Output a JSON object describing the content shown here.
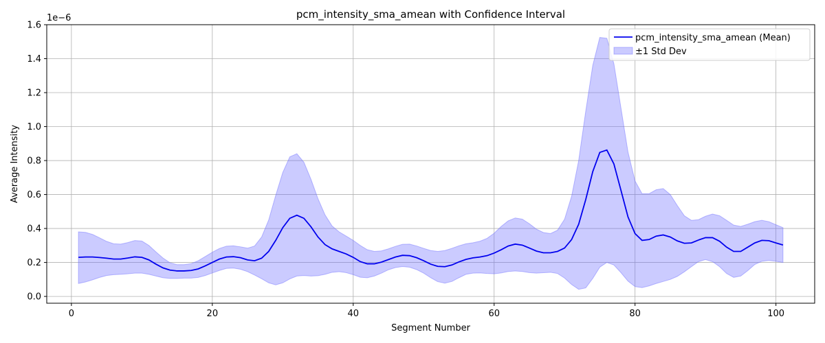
{
  "chart_data": {
    "type": "line",
    "title": "pcm_intensity_sma_amean with Confidence Interval",
    "xlabel": "Segment Number",
    "ylabel": "Average Intensity",
    "y_offset_label": "1e−6",
    "xlim": [
      -3.5,
      105.5
    ],
    "ylim": [
      -0.04,
      1.6
    ],
    "x_ticks": [
      0,
      20,
      40,
      60,
      80,
      100
    ],
    "y_ticks": [
      0.0,
      0.2,
      0.4,
      0.6,
      0.8,
      1.0,
      1.2,
      1.4,
      1.6
    ],
    "x_tick_labels": [
      "0",
      "20",
      "40",
      "60",
      "80",
      "100"
    ],
    "y_tick_labels": [
      "0.0",
      "0.2",
      "0.4",
      "0.6",
      "0.8",
      "1.0",
      "1.2",
      "1.4",
      "1.6"
    ],
    "grid": true,
    "legend_position": "top-right",
    "x": [
      1,
      2,
      3,
      4,
      5,
      6,
      7,
      8,
      9,
      10,
      11,
      12,
      13,
      14,
      15,
      16,
      17,
      18,
      19,
      20,
      21,
      22,
      23,
      24,
      25,
      26,
      27,
      28,
      29,
      30,
      31,
      32,
      33,
      34,
      35,
      36,
      37,
      38,
      39,
      40,
      41,
      42,
      43,
      44,
      45,
      46,
      47,
      48,
      49,
      50,
      51,
      52,
      53,
      54,
      55,
      56,
      57,
      58,
      59,
      60,
      61,
      62,
      63,
      64,
      65,
      66,
      67,
      68,
      69,
      70,
      71,
      72,
      73,
      74,
      75,
      76,
      77,
      78,
      79,
      80,
      81,
      82,
      83,
      84,
      85,
      86,
      87,
      88,
      89,
      90,
      91,
      92,
      93,
      94,
      95,
      96,
      97,
      98,
      99,
      100,
      101
    ],
    "series": [
      {
        "name": "pcm_intensity_sma_amean (Mean)",
        "color": "#0000ee",
        "values": [
          0.23,
          0.232,
          0.232,
          0.229,
          0.225,
          0.22,
          0.22,
          0.226,
          0.233,
          0.23,
          0.215,
          0.19,
          0.168,
          0.155,
          0.15,
          0.15,
          0.153,
          0.162,
          0.18,
          0.2,
          0.22,
          0.232,
          0.234,
          0.228,
          0.215,
          0.21,
          0.225,
          0.265,
          0.33,
          0.405,
          0.46,
          0.478,
          0.46,
          0.41,
          0.35,
          0.305,
          0.28,
          0.265,
          0.25,
          0.23,
          0.205,
          0.192,
          0.192,
          0.202,
          0.217,
          0.232,
          0.242,
          0.24,
          0.228,
          0.21,
          0.19,
          0.177,
          0.175,
          0.185,
          0.203,
          0.218,
          0.227,
          0.232,
          0.24,
          0.255,
          0.275,
          0.297,
          0.308,
          0.302,
          0.285,
          0.267,
          0.257,
          0.257,
          0.265,
          0.285,
          0.335,
          0.425,
          0.57,
          0.735,
          0.848,
          0.862,
          0.78,
          0.625,
          0.468,
          0.37,
          0.33,
          0.335,
          0.355,
          0.362,
          0.35,
          0.327,
          0.313,
          0.315,
          0.332,
          0.346,
          0.346,
          0.325,
          0.29,
          0.265,
          0.265,
          0.29,
          0.315,
          0.33,
          0.328,
          0.315,
          0.303
        ]
      }
    ],
    "band": {
      "name": "±1 Std Dev",
      "color": "#6b6bff",
      "lower": [
        0.076,
        0.085,
        0.098,
        0.112,
        0.123,
        0.128,
        0.13,
        0.133,
        0.137,
        0.137,
        0.13,
        0.12,
        0.11,
        0.106,
        0.106,
        0.108,
        0.108,
        0.112,
        0.123,
        0.138,
        0.153,
        0.165,
        0.167,
        0.16,
        0.146,
        0.126,
        0.104,
        0.08,
        0.068,
        0.08,
        0.103,
        0.12,
        0.123,
        0.12,
        0.122,
        0.13,
        0.142,
        0.146,
        0.14,
        0.128,
        0.113,
        0.11,
        0.12,
        0.137,
        0.157,
        0.17,
        0.176,
        0.172,
        0.158,
        0.137,
        0.11,
        0.087,
        0.078,
        0.088,
        0.11,
        0.13,
        0.137,
        0.138,
        0.135,
        0.133,
        0.138,
        0.147,
        0.15,
        0.147,
        0.14,
        0.137,
        0.14,
        0.142,
        0.135,
        0.108,
        0.07,
        0.042,
        0.05,
        0.106,
        0.172,
        0.2,
        0.185,
        0.14,
        0.09,
        0.058,
        0.052,
        0.062,
        0.076,
        0.088,
        0.1,
        0.118,
        0.145,
        0.175,
        0.205,
        0.217,
        0.205,
        0.175,
        0.135,
        0.112,
        0.12,
        0.152,
        0.188,
        0.207,
        0.212,
        0.207,
        0.2
      ],
      "upper": [
        0.38,
        0.377,
        0.365,
        0.345,
        0.324,
        0.31,
        0.308,
        0.317,
        0.329,
        0.326,
        0.3,
        0.262,
        0.226,
        0.198,
        0.187,
        0.187,
        0.193,
        0.21,
        0.235,
        0.26,
        0.282,
        0.296,
        0.298,
        0.292,
        0.284,
        0.297,
        0.35,
        0.45,
        0.595,
        0.73,
        0.822,
        0.84,
        0.79,
        0.69,
        0.575,
        0.48,
        0.415,
        0.38,
        0.355,
        0.33,
        0.3,
        0.275,
        0.265,
        0.268,
        0.28,
        0.295,
        0.307,
        0.308,
        0.297,
        0.283,
        0.27,
        0.265,
        0.27,
        0.283,
        0.298,
        0.31,
        0.316,
        0.325,
        0.342,
        0.372,
        0.412,
        0.445,
        0.462,
        0.455,
        0.428,
        0.396,
        0.376,
        0.37,
        0.39,
        0.455,
        0.59,
        0.8,
        1.09,
        1.36,
        1.525,
        1.52,
        1.37,
        1.11,
        0.85,
        0.68,
        0.605,
        0.605,
        0.628,
        0.635,
        0.6,
        0.535,
        0.475,
        0.448,
        0.452,
        0.472,
        0.485,
        0.475,
        0.448,
        0.42,
        0.412,
        0.425,
        0.44,
        0.448,
        0.44,
        0.422,
        0.405
      ]
    }
  }
}
